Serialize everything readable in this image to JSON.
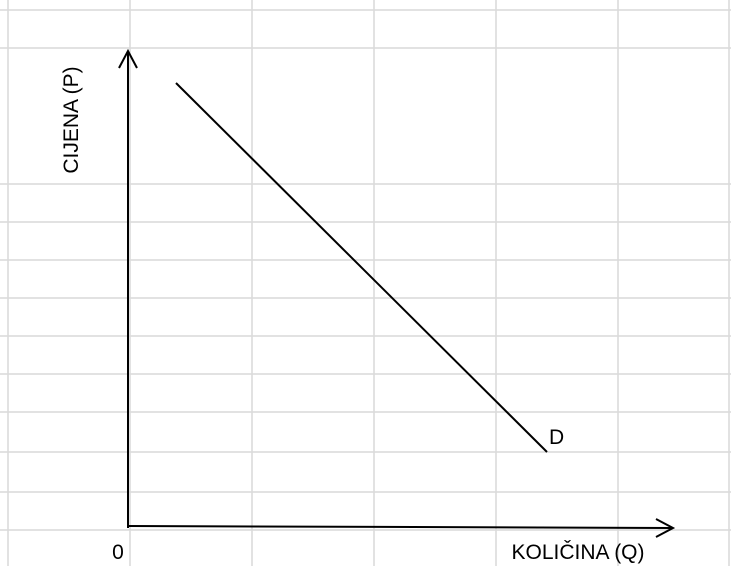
{
  "axes": {
    "y_label": "CIJENA (P)",
    "x_label": "KOLIČINA (Q)",
    "origin": "0"
  },
  "curve": {
    "label": "D"
  }
}
